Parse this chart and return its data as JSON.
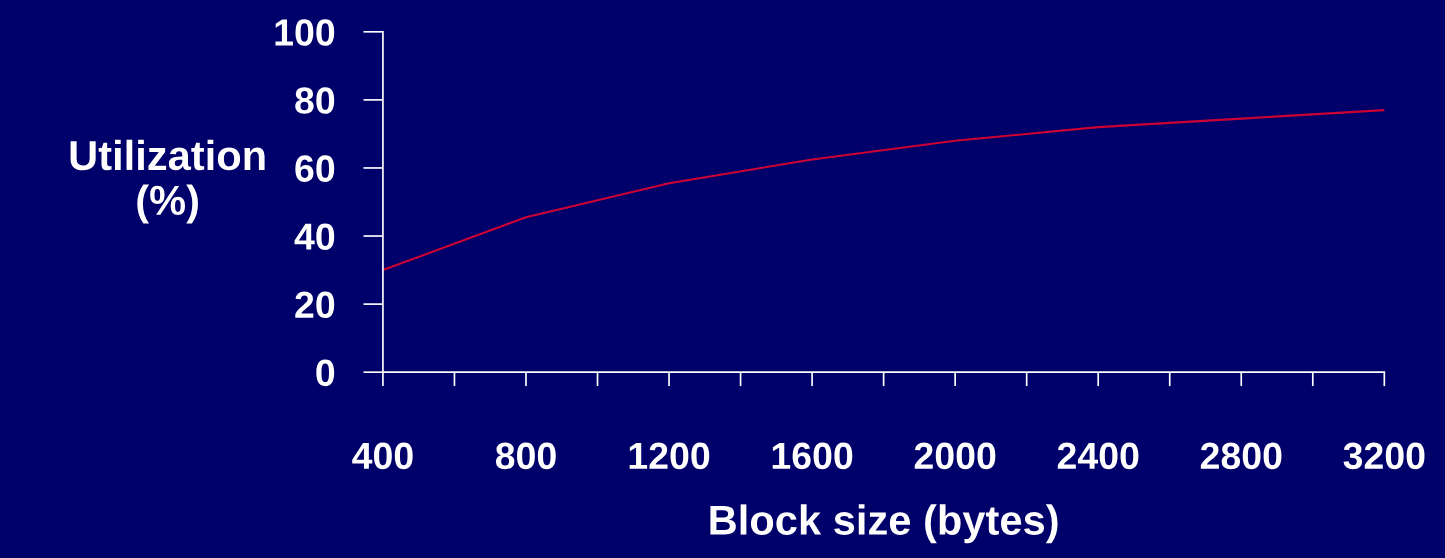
{
  "chart_data": {
    "type": "line",
    "xlabel": "Block size (bytes)",
    "ylabel": "Utilization\n(%)",
    "x": [
      400,
      800,
      1200,
      1600,
      2000,
      2400,
      2800,
      3200
    ],
    "series": [
      {
        "color": "#cc0033",
        "values": [
          30,
          45.5,
          55.5,
          62.5,
          68,
          72,
          74.5,
          77
        ]
      }
    ],
    "xlim": [
      400,
      3200
    ],
    "xticks": [
      400,
      800,
      1200,
      1600,
      2000,
      2400,
      2800,
      3200
    ],
    "ylim": [
      0,
      100
    ],
    "yticks": [
      0,
      20,
      40,
      60,
      80,
      100
    ],
    "grid": false,
    "marker": "none",
    "line_style": "solid"
  }
}
